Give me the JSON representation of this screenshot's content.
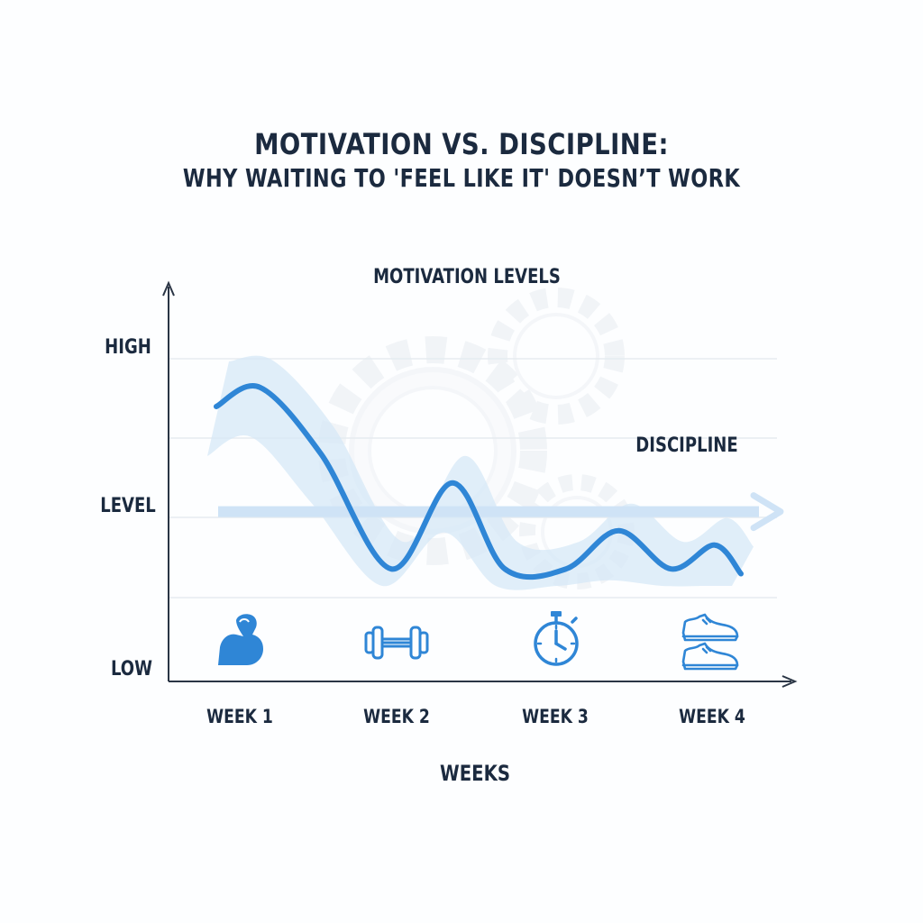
{
  "title": "MOTIVATION VS. DISCIPLINE:",
  "subtitle": "WHY WAITING TO 'FEEL LIKE IT' DOESN’T WORK",
  "chart_data": {
    "type": "line",
    "title": "MOTIVATION LEVELS",
    "xlabel": "WEEKS",
    "ylabel": "",
    "y_tick_labels": [
      "HIGH",
      "LEVEL",
      "LOW"
    ],
    "categories": [
      "WEEK 1",
      "WEEK 2",
      "WEEK 3",
      "WEEK 4"
    ],
    "ylim": [
      0,
      100
    ],
    "grid": true,
    "series": [
      {
        "name": "",
        "x": [
          0.0,
          0.25,
          0.6,
          1.0,
          1.35,
          1.65,
          2.0,
          2.3,
          2.6,
          2.85,
          3.0
        ],
        "values": [
          80,
          88,
          60,
          12,
          48,
          12,
          12,
          28,
          12,
          22,
          10
        ]
      }
    ],
    "annotations": [
      {
        "text": "DISCIPLINE",
        "type": "arrow",
        "y": 36
      }
    ],
    "icons": [
      "flexed-bicep-icon",
      "dumbbell-icon",
      "stopwatch-icon",
      "sneakers-icon"
    ],
    "colors": {
      "line": "#2f86d6",
      "band": "#d6e8f7",
      "arrow": "#c9e0f5",
      "grid": "#e6ebf0",
      "axis": "#2a3545",
      "icon": "#2f86d6"
    }
  }
}
